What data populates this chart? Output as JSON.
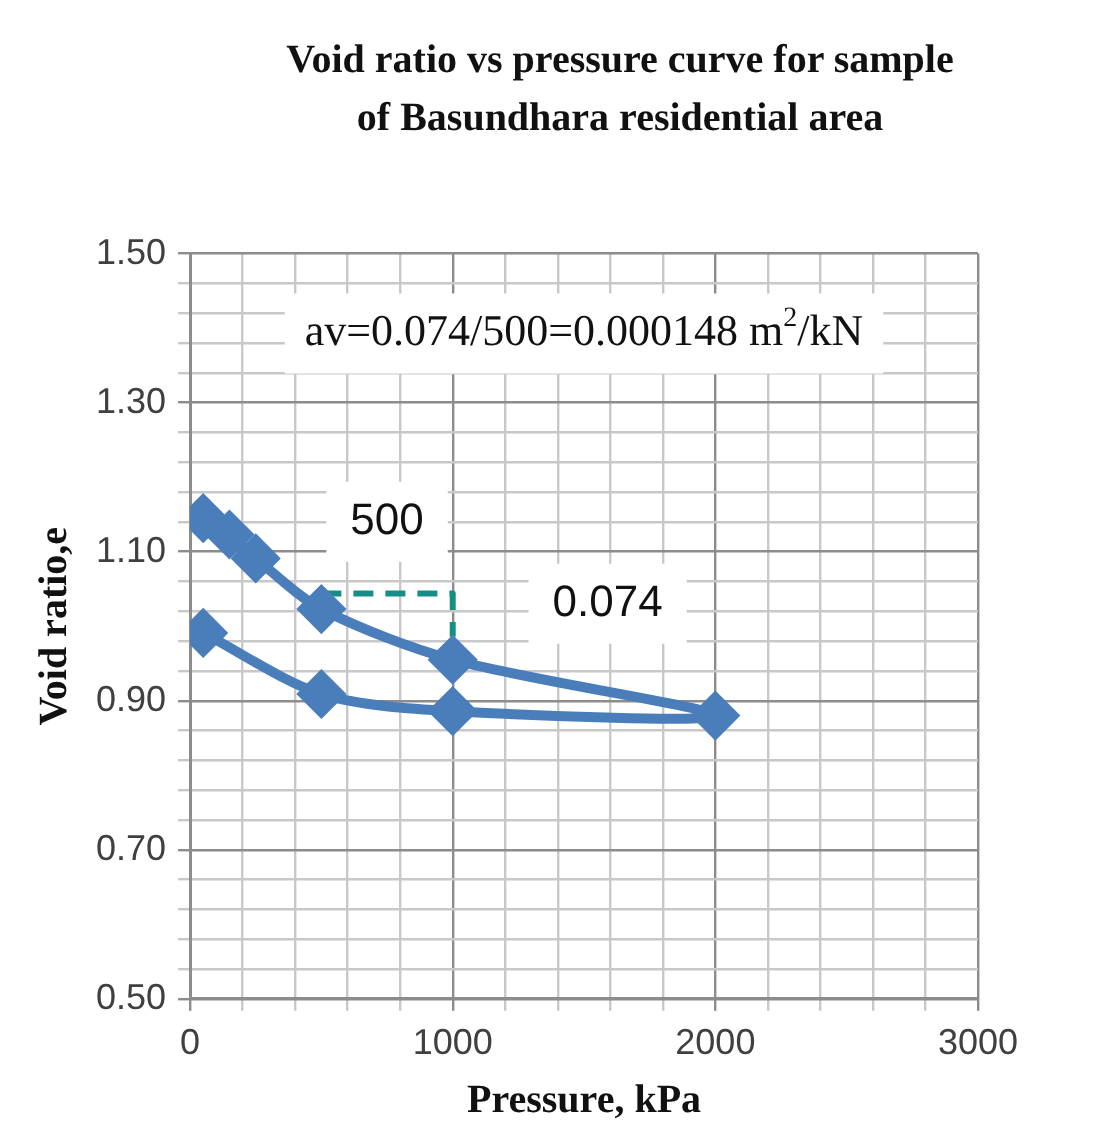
{
  "chart_data": {
    "type": "line",
    "title": "Void ratio vs pressure curve for sample of Basundhara residential area",
    "xlabel": "Pressure, kPa",
    "ylabel": "Void ratio,e",
    "series": [
      {
        "color": "#4a7ebb",
        "x": [
          50,
          150,
          250,
          500,
          1000,
          2000,
          1000,
          500,
          50
        ],
        "values": [
          1.145,
          1.123,
          1.091,
          1.023,
          0.955,
          0.88,
          0.886,
          0.909,
          0.991
        ],
        "marker": "diamond"
      },
      {
        "type": "line",
        "color": "#138f85",
        "x": [
          500,
          1000,
          1000
        ],
        "values": [
          1.044,
          1.044,
          0.986
        ],
        "line_style": "dashed",
        "marker": "none"
      }
    ],
    "xlim": [
      0,
      3000
    ],
    "xticks": [
      0,
      {
        "value": 200,
        "label": null
      },
      {
        "value": 400,
        "label": null
      },
      {
        "value": 600,
        "label": null
      },
      {
        "value": 800,
        "label": null
      },
      1000,
      {
        "value": 1200,
        "label": null
      },
      {
        "value": 1400,
        "label": null
      },
      {
        "value": 1600,
        "label": null
      },
      {
        "value": 1800,
        "label": null
      },
      2000,
      {
        "value": 2200,
        "label": null
      },
      {
        "value": 2400,
        "label": null
      },
      {
        "value": 2600,
        "label": null
      },
      {
        "value": 2800,
        "label": null
      },
      3000
    ],
    "ylim": [
      0.5,
      1.5
    ],
    "yticks": [
      {
        "value": 0.5,
        "label": "0.50"
      },
      {
        "value": 0.54,
        "label": null
      },
      {
        "value": 0.58,
        "label": null
      },
      {
        "value": 0.62,
        "label": null
      },
      {
        "value": 0.66,
        "label": null
      },
      {
        "value": 0.7,
        "label": "0.70"
      },
      {
        "value": 0.74,
        "label": null
      },
      {
        "value": 0.78,
        "label": null
      },
      {
        "value": 0.82,
        "label": null
      },
      {
        "value": 0.86,
        "label": null
      },
      {
        "value": 0.9,
        "label": "0.90"
      },
      {
        "value": 0.94,
        "label": null
      },
      {
        "value": 0.98,
        "label": null
      },
      {
        "value": 1.02,
        "label": null
      },
      {
        "value": 1.06,
        "label": null
      },
      {
        "value": 1.1,
        "label": "1.10"
      },
      {
        "value": 1.14,
        "label": null
      },
      {
        "value": 1.18,
        "label": null
      },
      {
        "value": 1.22,
        "label": null
      },
      {
        "value": 1.26,
        "label": null
      },
      {
        "value": 1.3,
        "label": "1.30"
      },
      {
        "value": 1.34,
        "label": null
      },
      {
        "value": 1.38,
        "label": null
      },
      {
        "value": 1.42,
        "label": null
      },
      {
        "value": 1.46,
        "label": null
      },
      {
        "value": 1.5,
        "label": "1.50"
      }
    ],
    "grid": true,
    "legend": false,
    "annotations": [
      "av=0.074/500=0.000148 m$^{2}$/kN",
      "500",
      "0.074"
    ]
  }
}
